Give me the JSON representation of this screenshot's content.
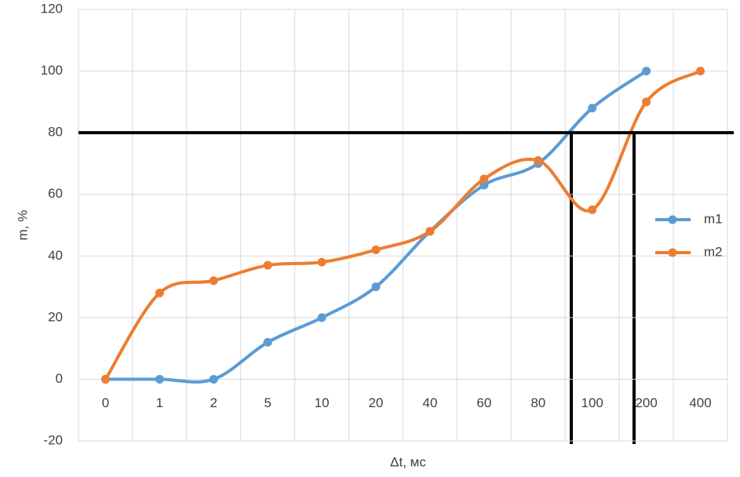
{
  "chart_data": {
    "type": "line",
    "x_label": "Δt, мс",
    "y_label": "m, %",
    "categories": [
      "0",
      "1",
      "2",
      "5",
      "10",
      "20",
      "40",
      "60",
      "80",
      "100",
      "200",
      "400"
    ],
    "series": [
      {
        "name": "m1",
        "color": "#5b9bd5",
        "values": [
          0,
          0,
          0,
          12,
          20,
          30,
          48,
          63,
          70,
          88,
          100,
          null
        ]
      },
      {
        "name": "m2",
        "color": "#ed7d31",
        "values": [
          0,
          28,
          32,
          37,
          38,
          42,
          48,
          65,
          71,
          55,
          90,
          100
        ]
      }
    ],
    "ylim": [
      -20,
      120
    ],
    "yticks": [
      -20,
      0,
      20,
      40,
      60,
      80,
      100,
      120
    ],
    "grid": true,
    "smooth": true,
    "legend": "right",
    "hline": 80
  }
}
